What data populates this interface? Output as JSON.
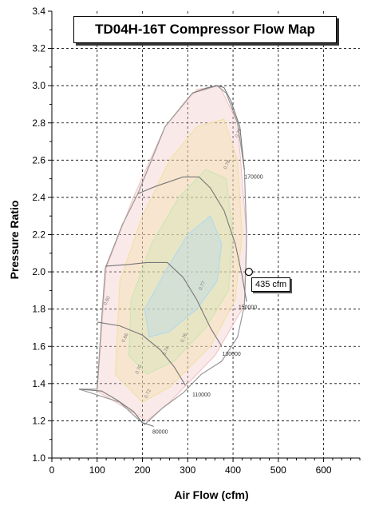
{
  "chart_data": {
    "type": "scatter",
    "title": "TD04H-16T Compressor Flow Map",
    "xlabel": "Air Flow (cfm)",
    "ylabel": "Pressure Ratio",
    "xlim": [
      0,
      680
    ],
    "ylim": [
      1.0,
      3.4
    ],
    "xticks": [
      "0",
      "100",
      "200",
      "300",
      "400",
      "500",
      "600"
    ],
    "yticks": [
      "1.0",
      "1.2",
      "1.4",
      "1.6",
      "1.8",
      "2.0",
      "2.2",
      "2.4",
      "2.6",
      "2.8",
      "3.0",
      "3.2",
      "3.4"
    ],
    "grid": true,
    "point": {
      "x": 435,
      "y": 2.0,
      "label": "435 cfm"
    },
    "speed_labels": [
      "80000",
      "110000",
      "130000",
      "150000",
      "170000"
    ],
    "efficiency_labels": [
      "0.60",
      "0.66",
      "0.70",
      "0.72",
      "0.74",
      "0.76",
      "0.77",
      "0.78",
      "0.79"
    ],
    "map_colors": {
      "border": "#999999",
      "speed_lines": "#777777",
      "eff_a": "#f2c0c0",
      "eff_b": "#f0e0a0",
      "eff_c": "#c8e6b0",
      "eff_d": "#b0d8f0"
    }
  }
}
